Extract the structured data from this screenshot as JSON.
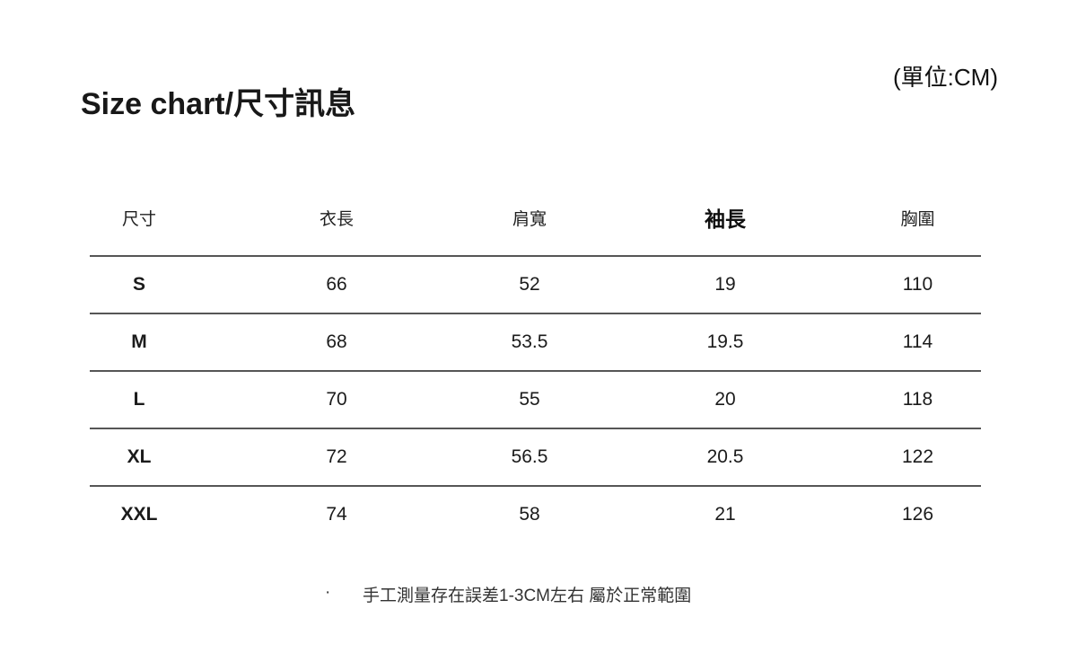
{
  "page": {
    "title": "Size chart/尺寸訊息",
    "unit_label": "(單位:CM)",
    "footnote_bullet": "·",
    "footnote": "手工測量存在誤差1-3CM左右 屬於正常範圍"
  },
  "colors": {
    "text": "#1b1b1b",
    "divider_line": "#565656",
    "background": "#ffffff"
  },
  "chart_data": {
    "type": "table",
    "title": "Size chart/尺寸訊息",
    "unit": "CM",
    "columns": [
      "尺寸",
      "衣長",
      "肩寬",
      "袖長",
      "胸圍"
    ],
    "rows": [
      {
        "size": "S",
        "values": [
          "66",
          "52",
          "19",
          "110"
        ]
      },
      {
        "size": "M",
        "values": [
          "68",
          "53.5",
          "19.5",
          "114"
        ]
      },
      {
        "size": "L",
        "values": [
          "70",
          "55",
          "20",
          "118"
        ]
      },
      {
        "size": "XL",
        "values": [
          "72",
          "56.5",
          "20.5",
          "122"
        ]
      },
      {
        "size": "XXL",
        "values": [
          "74",
          "58",
          "21",
          "126"
        ]
      }
    ],
    "notes": "手工測量存在誤差1-3CM左右 屬於正常範圍",
    "layout": {
      "grid": "horizontal-dividers-only",
      "no_border_below_last_row": true
    }
  }
}
